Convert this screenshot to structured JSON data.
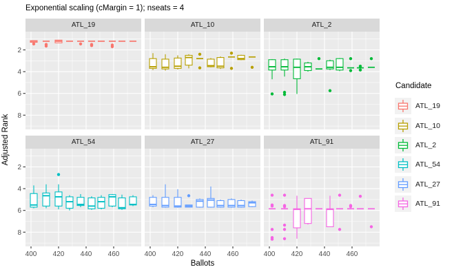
{
  "chart_data": {
    "type": "boxplot",
    "title": "Exponential scaling (cMargin = 1); nseats = 4",
    "xlabel": "Ballots",
    "ylabel": "Adjusted Rank",
    "x_ticks": [
      400,
      420,
      440,
      460
    ],
    "x_minor": [
      410,
      430,
      450,
      470
    ],
    "y_ticks": [
      2,
      4,
      6,
      8
    ],
    "y_minor": [
      1,
      3,
      5,
      7,
      9
    ],
    "xlim": [
      396,
      480
    ],
    "ylim": [
      0.3,
      9.3
    ],
    "y_reversed": true,
    "grid": true,
    "panel_bg": "#EBEBEB",
    "strip_bg": "#D9D9D9",
    "grid_color": "#FFFFFF",
    "axis_text_color": "#4D4D4D",
    "tick_mark_color": "#333333",
    "legend": {
      "title": "Candidate",
      "position": "right",
      "key_bg": "#F2F2F2",
      "entries": [
        {
          "label": "ATL_19",
          "color": "#F8766D"
        },
        {
          "label": "ATL_10",
          "color": "#B79F00"
        },
        {
          "label": "ATL_2",
          "color": "#00BA38"
        },
        {
          "label": "ATL_54",
          "color": "#00BFC4"
        },
        {
          "label": "ATL_27",
          "color": "#619CFF"
        },
        {
          "label": "ATL_91",
          "color": "#F564E3"
        }
      ]
    },
    "box_format": [
      "x",
      "whisker_lo",
      "q1",
      "median",
      "q3",
      "whisker_hi",
      "outliers"
    ],
    "facets": [
      {
        "label": "ATL_19",
        "color": "#F8766D",
        "row": 0,
        "col": 0,
        "boxes": [
          [
            402,
            1.15,
            1.15,
            1.2,
            1.3,
            1.3,
            [
              1.45
            ]
          ],
          [
            411,
            1.2,
            1.2,
            1.2,
            1.2,
            1.2,
            [
              1.5,
              1.65
            ]
          ],
          [
            420,
            1.1,
            1.1,
            1.2,
            1.35,
            1.35,
            []
          ],
          [
            428,
            1.2,
            1.2,
            1.2,
            1.2,
            1.2,
            []
          ],
          [
            436,
            1.2,
            1.2,
            1.2,
            1.2,
            1.2,
            [
              1.45
            ]
          ],
          [
            444,
            1.2,
            1.2,
            1.2,
            1.2,
            1.2,
            [
              1.5,
              1.6
            ]
          ],
          [
            451,
            1.2,
            1.2,
            1.2,
            1.2,
            1.2,
            []
          ],
          [
            459,
            1.2,
            1.2,
            1.2,
            1.2,
            1.2,
            [
              1.55,
              1.7
            ]
          ],
          [
            466,
            1.2,
            1.2,
            1.2,
            1.2,
            1.2,
            []
          ],
          [
            474,
            1.2,
            1.2,
            1.2,
            1.2,
            1.2,
            []
          ]
        ]
      },
      {
        "label": "ATL_10",
        "color": "#B79F00",
        "row": 0,
        "col": 1,
        "boxes": [
          [
            402,
            2.3,
            2.8,
            3.55,
            3.7,
            3.85,
            []
          ],
          [
            411,
            2.4,
            2.85,
            3.6,
            3.75,
            3.9,
            []
          ],
          [
            420,
            2.5,
            2.75,
            3.5,
            3.7,
            3.8,
            []
          ],
          [
            428,
            2.4,
            2.5,
            2.7,
            3.4,
            3.7,
            []
          ],
          [
            436,
            2.8,
            2.8,
            2.8,
            2.8,
            2.8,
            [
              2.4,
              3.65
            ]
          ],
          [
            444,
            2.75,
            2.85,
            3.45,
            3.55,
            3.6,
            []
          ],
          [
            451,
            2.6,
            2.7,
            3.5,
            3.65,
            3.75,
            []
          ],
          [
            459,
            2.65,
            2.65,
            2.65,
            2.65,
            2.65,
            [
              2.3,
              3.7
            ]
          ],
          [
            466,
            2.45,
            2.5,
            2.8,
            2.9,
            2.95,
            []
          ],
          [
            474,
            2.65,
            2.65,
            2.65,
            2.65,
            2.65,
            [
              3.6
            ]
          ]
        ]
      },
      {
        "label": "ATL_2",
        "color": "#00BA38",
        "row": 0,
        "col": 2,
        "boxes": [
          [
            402,
            2.85,
            2.9,
            3.55,
            3.85,
            4.7,
            [
              6.05
            ]
          ],
          [
            411,
            2.8,
            2.9,
            3.55,
            3.85,
            4.45,
            [
              5.9,
              6.1
            ]
          ],
          [
            420,
            2.8,
            2.85,
            3.6,
            4.65,
            6.05,
            []
          ],
          [
            428,
            3.1,
            3.2,
            3.55,
            3.9,
            4.0,
            []
          ],
          [
            436,
            3.75,
            3.75,
            3.75,
            3.75,
            3.75,
            [
              2.8
            ]
          ],
          [
            444,
            2.9,
            3.0,
            3.6,
            3.75,
            3.85,
            [
              5.75
            ]
          ],
          [
            451,
            2.75,
            2.8,
            3.6,
            3.85,
            3.95,
            []
          ],
          [
            459,
            3.65,
            3.65,
            3.65,
            3.65,
            3.65,
            [
              2.8,
              3.9
            ]
          ],
          [
            466,
            3.65,
            3.65,
            3.65,
            3.65,
            3.65,
            [
              3.5,
              3.85
            ]
          ],
          [
            474,
            3.6,
            3.6,
            3.6,
            3.6,
            3.6,
            [
              2.8
            ]
          ]
        ]
      },
      {
        "label": "ATL_54",
        "color": "#00BFC4",
        "row": 1,
        "col": 0,
        "boxes": [
          [
            402,
            3.7,
            4.45,
            5.5,
            5.7,
            5.8,
            []
          ],
          [
            411,
            3.6,
            4.4,
            4.65,
            5.6,
            5.8,
            []
          ],
          [
            420,
            3.6,
            4.3,
            4.75,
            5.6,
            5.9,
            [
              2.7
            ]
          ],
          [
            428,
            4.6,
            4.75,
            5.2,
            5.8,
            6.0,
            []
          ],
          [
            436,
            4.5,
            4.8,
            5.45,
            5.55,
            5.7,
            []
          ],
          [
            444,
            4.7,
            4.85,
            5.6,
            5.85,
            5.95,
            []
          ],
          [
            451,
            4.6,
            4.8,
            5.2,
            5.8,
            5.9,
            []
          ],
          [
            459,
            4.5,
            4.55,
            4.75,
            5.6,
            5.7,
            []
          ],
          [
            466,
            4.55,
            4.85,
            5.75,
            5.85,
            5.95,
            []
          ],
          [
            474,
            4.6,
            4.75,
            5.45,
            5.5,
            5.6,
            []
          ]
        ]
      },
      {
        "label": "ATL_27",
        "color": "#619CFF",
        "row": 1,
        "col": 1,
        "boxes": [
          [
            402,
            4.6,
            4.8,
            5.45,
            5.6,
            5.7,
            []
          ],
          [
            411,
            3.6,
            4.8,
            5.55,
            5.7,
            5.75,
            []
          ],
          [
            420,
            4.05,
            4.8,
            5.6,
            5.7,
            5.75,
            []
          ],
          [
            428,
            5.5,
            5.5,
            5.6,
            5.7,
            5.7,
            [
              4.65
            ]
          ],
          [
            436,
            4.9,
            5.0,
            5.15,
            5.7,
            5.75,
            []
          ],
          [
            444,
            3.8,
            4.9,
            5.05,
            5.7,
            5.75,
            []
          ],
          [
            451,
            5.0,
            5.1,
            5.55,
            5.7,
            5.75,
            []
          ],
          [
            459,
            4.9,
            5.0,
            5.55,
            5.7,
            5.75,
            []
          ],
          [
            466,
            5.0,
            5.1,
            5.55,
            5.7,
            5.75,
            []
          ],
          [
            474,
            5.1,
            5.2,
            5.3,
            5.65,
            5.7,
            []
          ]
        ]
      },
      {
        "label": "ATL_91",
        "color": "#F564E3",
        "row": 1,
        "col": 2,
        "boxes": [
          [
            402,
            5.85,
            5.85,
            5.85,
            5.85,
            5.85,
            [
              4.6,
              5.5,
              5.6,
              7.75,
              8.5,
              8.65
            ]
          ],
          [
            411,
            5.85,
            5.85,
            5.85,
            5.85,
            5.85,
            [
              4.6,
              5.55,
              5.65,
              7.35,
              7.75,
              8.6
            ]
          ],
          [
            420,
            4.65,
            5.85,
            5.9,
            7.6,
            8.6,
            []
          ],
          [
            428,
            4.9,
            4.9,
            5.85,
            7.2,
            7.3,
            []
          ],
          [
            436,
            5.85,
            5.85,
            5.85,
            5.85,
            5.85,
            []
          ],
          [
            444,
            4.65,
            5.85,
            5.9,
            7.5,
            7.5,
            []
          ],
          [
            451,
            5.85,
            5.85,
            5.85,
            5.85,
            5.85,
            [
              4.6,
              7.75
            ]
          ],
          [
            459,
            5.85,
            5.85,
            5.85,
            5.85,
            5.85,
            [
              5.55,
              5.65
            ]
          ],
          [
            466,
            5.85,
            5.85,
            5.85,
            5.85,
            5.85,
            [
              4.7
            ]
          ],
          [
            474,
            5.85,
            5.85,
            5.85,
            5.85,
            5.85,
            [
              7.5
            ]
          ]
        ]
      }
    ]
  }
}
